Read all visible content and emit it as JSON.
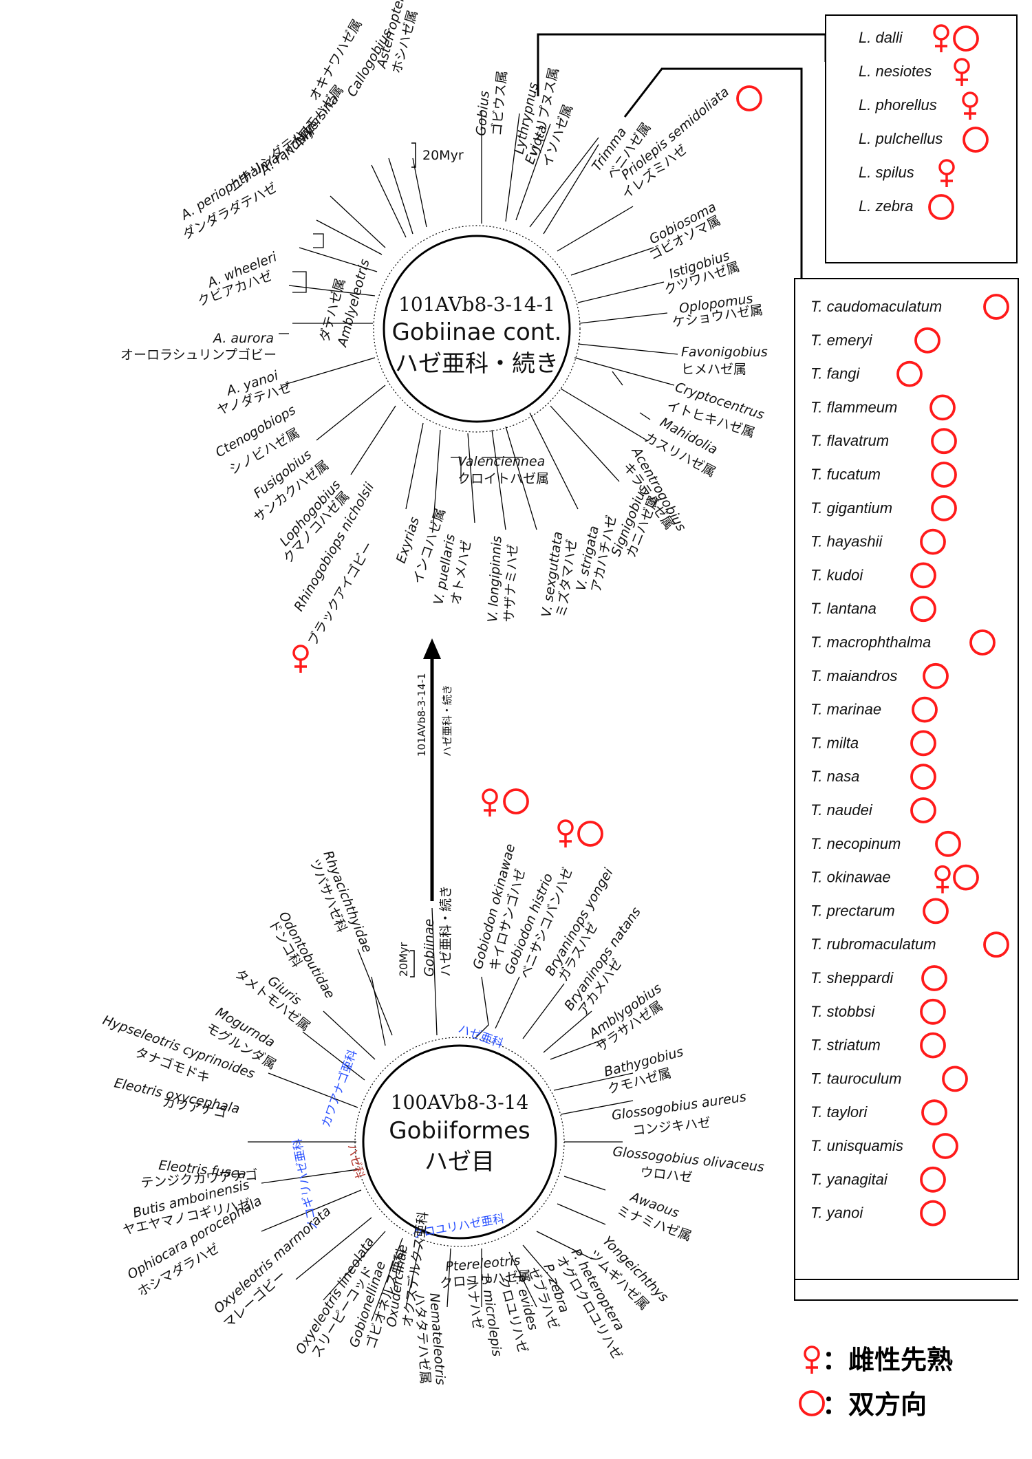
{
  "tree_top": {
    "center_code": "101AVb8-3-14-1",
    "center_title": "Gobiinae cont.",
    "center_jp": "ハゼ亜科・続き",
    "scale": "20Myr",
    "taxa": [
      {
        "sci": "Asterropteryx",
        "jp": "ホシハゼ属"
      },
      {
        "sci": "Callogobius",
        "jp": "オキナワハゼ属"
      },
      {
        "sci": "Myersina",
        "jp": "ハゴロモハゼ属"
      },
      {
        "sci": "A. randalli",
        "jp": "ニチリンダテハゼ"
      },
      {
        "sci": "A. periophthalma",
        "jp": "ダンダラダテハゼ"
      },
      {
        "sci": "A. wheeleri",
        "jp": "クビアカハゼ"
      },
      {
        "sci": "A. aurora",
        "jp": "オーロラシュリンプゴビー"
      },
      {
        "sci": "A. yanoi",
        "jp": "ヤノダテハゼ"
      },
      {
        "sci": "Ctenogobiops",
        "jp": "シノビハゼ属"
      },
      {
        "sci": "Fusigobius",
        "jp": "サンカクハゼ属"
      },
      {
        "sci": "Lophogobius",
        "jp": "クマノコハゼ属"
      },
      {
        "sci": "Rhinogobiops nicholsii",
        "jp": "ブラックアイゴビー"
      },
      {
        "sci": "Exyrias",
        "jp": "インコハゼ属"
      },
      {
        "sci": "V. puellaris",
        "jp": "オトメハゼ"
      },
      {
        "sci": "V. longipinnis",
        "jp": "サザナミハゼ"
      },
      {
        "sci": "V. sexguttata",
        "jp": "ミズタマハゼ"
      },
      {
        "sci": "V. strigata",
        "jp": "アカハチハゼ"
      },
      {
        "sci": "Signigobius",
        "jp": "カニハゼ属"
      },
      {
        "sci": "Acentrogobius",
        "jp": "キララハゼ属"
      },
      {
        "sci": "Mahidolia",
        "jp": "カスリハゼ属"
      },
      {
        "sci": "Cryptocentrus",
        "jp": "イトヒキハゼ属"
      },
      {
        "sci": "Favonigobius",
        "jp": "ヒメハゼ属"
      },
      {
        "sci": "Oplopomus",
        "jp": "ケショウハゼ属"
      },
      {
        "sci": "Istigobius",
        "jp": "クツワハゼ属"
      },
      {
        "sci": "Gobiosoma",
        "jp": "ゴビオソマ属"
      },
      {
        "sci": "Priolepis semidoliata",
        "jp": "イレズミハゼ"
      },
      {
        "sci": "Trimma",
        "jp": "ベニハゼ属"
      },
      {
        "sci": "Eviota",
        "jp": "イソハゼ属"
      },
      {
        "sci": "Lythrypnus",
        "jp": "リトリプヌス属"
      },
      {
        "sci": "Gobius",
        "jp": "ゴビウス属"
      }
    ],
    "group_amblyeleotris": "Amblyeleotris",
    "group_amblyeleotris_jp": "ダテハゼ属",
    "group_valenciennea": "Valenciennea",
    "group_valenciennea_jp": "クロイトハゼ属"
  },
  "link_arrow": {
    "code": "101AVb8-3-14-1",
    "jp": "ハゼ亜科・続き"
  },
  "tree_bottom": {
    "center_code": "100AVb8-3-14",
    "center_title": "Gobiiformes",
    "center_jp": "ハゼ目",
    "scale": "20Myr",
    "gobiinae_label": "Gobiinae",
    "gobiinae_jp": "ハゼ亜科・続き",
    "taxa": [
      {
        "sci": "Gobiodon okinawae",
        "jp": "キイロサンゴハゼ"
      },
      {
        "sci": "Gobiodon histrio",
        "jp": "ベニサシコバンハゼ"
      },
      {
        "sci": "Bryaninops yongei",
        "jp": "ガラスハゼ"
      },
      {
        "sci": "Bryaninops natans",
        "jp": "アカメハゼ"
      },
      {
        "sci": "Amblygobius",
        "jp": "サラサハゼ属"
      },
      {
        "sci": "Bathygobius",
        "jp": "クモハゼ属"
      },
      {
        "sci": "Glossogobius aureus",
        "jp": "コンジキハゼ"
      },
      {
        "sci": "Glossogobius olivaceus",
        "jp": "ウロハゼ"
      },
      {
        "sci": "Awaous",
        "jp": "ミナミハゼ属"
      },
      {
        "sci": "Yongeichthys",
        "jp": "ツムギハゼ属"
      },
      {
        "sci": "P. heteroptera",
        "jp": "オグロクロユリハゼ"
      },
      {
        "sci": "P. zebra",
        "jp": "ゼブラハゼ"
      },
      {
        "sci": "P. evides",
        "jp": "クロユリハゼ"
      },
      {
        "sci": "P. microlepis",
        "jp": "ハナハゼ"
      },
      {
        "sci": "Nemateleotris",
        "jp": "ハタタテハゼ属"
      },
      {
        "sci": "Oxudercinae",
        "jp": "オクスデルクス亜科"
      },
      {
        "sci": "Gobionellinae",
        "jp": "ゴビオネルス亜科"
      },
      {
        "sci": "Oxyeleotris lineolata",
        "jp": "スリーピーコッド"
      },
      {
        "sci": "Oxyeleotris marmorata",
        "jp": "マレーゴビー"
      },
      {
        "sci": "Ophiocara porocephala",
        "jp": "ホシマダラハゼ"
      },
      {
        "sci": "Butis amboinensis",
        "jp": "ヤエヤマノコギリハゼ"
      },
      {
        "sci": "Eleotris fusca",
        "jp": "テンジクカワアナゴ"
      },
      {
        "sci": "Eleotris oxycephala",
        "jp": "カワアナゴ"
      },
      {
        "sci": "Hypseleotris cyprinoides",
        "jp": "タナゴモドキ"
      },
      {
        "sci": "Mogurnda",
        "jp": "モグルンダ属"
      },
      {
        "sci": "Giuris",
        "jp": "タメトモハゼ属"
      },
      {
        "sci": "Odontobutidae",
        "jp": "ドンコ科"
      },
      {
        "sci": "Rhyacichthyidae",
        "jp": "ツバサハゼ科"
      }
    ],
    "arc_labels": {
      "gobiinae": "ハゼ亜科",
      "eleotridae": "カワアナゴ亜科",
      "butidae": "ノコギリハゼ亜科",
      "gobiidae_fam": "ハゼ科",
      "ptereleotrinae": "クロユリハゼ亜科",
      "ptereleotris": "Ptereleotris",
      "ptereleotris_jp": "クロユリハゼ属"
    }
  },
  "box_lythrypnus": {
    "items": [
      {
        "name": "L. dalli",
        "female": true,
        "bidir": true
      },
      {
        "name": "L. nesiotes",
        "female": true,
        "bidir": false
      },
      {
        "name": "L. phorellus",
        "female": true,
        "bidir": false
      },
      {
        "name": "L. pulchellus",
        "female": false,
        "bidir": true
      },
      {
        "name": "L. spilus",
        "female": true,
        "bidir": false
      },
      {
        "name": "L. zebra",
        "female": false,
        "bidir": true
      }
    ]
  },
  "box_trimma": {
    "items": [
      {
        "name": "T. caudomaculatum"
      },
      {
        "name": "T. emeryi"
      },
      {
        "name": "T. fangi"
      },
      {
        "name": "T. flammeum"
      },
      {
        "name": "T. flavatrum"
      },
      {
        "name": "T. fucatum"
      },
      {
        "name": "T. gigantium"
      },
      {
        "name": "T. hayashii"
      },
      {
        "name": "T. kudoi"
      },
      {
        "name": "T. lantana"
      },
      {
        "name": "T. macrophthalma"
      },
      {
        "name": "T. maiandros"
      },
      {
        "name": "T. marinae"
      },
      {
        "name": "T. milta"
      },
      {
        "name": "T. nasa"
      },
      {
        "name": "T. naudei"
      },
      {
        "name": "T. necopinum"
      },
      {
        "name": "T. okinawae"
      },
      {
        "name": "T. prectarum"
      },
      {
        "name": "T. rubromaculatum"
      },
      {
        "name": "T. sheppardi"
      },
      {
        "name": "T. stobbsi"
      },
      {
        "name": "T. striatum"
      },
      {
        "name": "T. tauroculum"
      },
      {
        "name": "T. taylori"
      },
      {
        "name": "T. unisquamis"
      },
      {
        "name": "T. yanagitai"
      },
      {
        "name": "T. yanoi"
      }
    ]
  },
  "legend": {
    "female_label": "：雌性先熟",
    "bidir_label": "：双方向"
  },
  "colors": {
    "marker": "#ff1a1a",
    "arc_blue": "#2b52ff",
    "arc_brown": "#b5372e"
  }
}
